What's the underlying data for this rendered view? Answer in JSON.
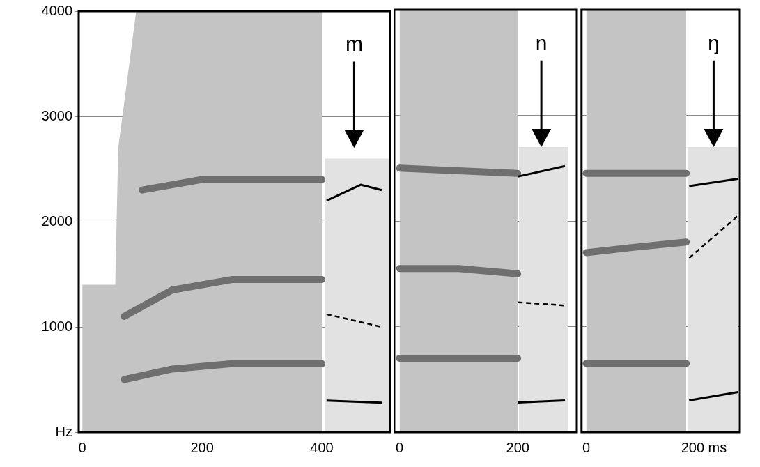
{
  "chart_data": [
    {
      "type": "line",
      "annotation": "m",
      "xlim": [
        -6,
        514
      ],
      "xticks": [
        0,
        200,
        400
      ],
      "ylim": [
        0,
        4000
      ],
      "yticks": [
        {
          "value": 0,
          "label": "Hz"
        },
        1000,
        2000,
        3000,
        4000
      ],
      "grid": true,
      "series": [
        {
          "type": "area",
          "color": "#c4c4c4",
          "x": [
            0,
            55,
            60,
            90,
            400
          ],
          "values": [
            1400,
            1400,
            2700,
            4000,
            4000
          ]
        },
        {
          "type": "area",
          "color": "#e2e2e2",
          "x": [
            405,
            545
          ],
          "values": [
            2600,
            2600
          ]
        },
        {
          "color": "#6f6f6f",
          "line_style": "thick",
          "x": [
            70,
            150,
            250,
            400
          ],
          "values": [
            500,
            600,
            650,
            650
          ]
        },
        {
          "color": "#6f6f6f",
          "line_style": "thick",
          "x": [
            70,
            150,
            250,
            350,
            400
          ],
          "values": [
            1100,
            1350,
            1450,
            1450,
            1450
          ]
        },
        {
          "color": "#6f6f6f",
          "line_style": "thick",
          "x": [
            100,
            200,
            300,
            400
          ],
          "values": [
            2300,
            2400,
            2400,
            2400
          ]
        },
        {
          "color": "#000000",
          "line_style": "solid",
          "x": [
            408,
            465,
            500
          ],
          "values": [
            2200,
            2350,
            2300
          ]
        },
        {
          "color": "#000000",
          "line_style": "dashed",
          "x": [
            408,
            500
          ],
          "values": [
            1120,
            1000
          ]
        },
        {
          "color": "#000000",
          "line_style": "solid",
          "x": [
            408,
            500
          ],
          "values": [
            300,
            280
          ]
        }
      ]
    },
    {
      "type": "line",
      "annotation": "n",
      "xlim": [
        -9,
        300
      ],
      "xticks": [
        0,
        200
      ],
      "ylim": [
        0,
        4000
      ],
      "yticks": [
        {
          "value": 0,
          "label": "Hz"
        },
        1000,
        2000,
        3000,
        4000
      ],
      "grid": true,
      "tick_labels": "x",
      "series": [
        {
          "type": "area",
          "color": "#c4c4c4",
          "x": [
            0,
            200
          ],
          "values": [
            4000,
            4000
          ]
        },
        {
          "type": "area",
          "color": "#e2e2e2",
          "x": [
            202,
            285
          ],
          "values": [
            2700,
            2700
          ]
        },
        {
          "color": "#6f6f6f",
          "line_style": "thick",
          "x": [
            0,
            200
          ],
          "values": [
            700,
            700
          ]
        },
        {
          "color": "#6f6f6f",
          "line_style": "thick",
          "x": [
            0,
            100,
            200
          ],
          "values": [
            1550,
            1550,
            1500
          ]
        },
        {
          "color": "#6f6f6f",
          "line_style": "thick",
          "x": [
            0,
            200
          ],
          "values": [
            2500,
            2450
          ]
        },
        {
          "color": "#000000",
          "line_style": "solid",
          "x": [
            200,
            280
          ],
          "values": [
            2420,
            2520
          ]
        },
        {
          "color": "#000000",
          "line_style": "dashed",
          "x": [
            200,
            280
          ],
          "values": [
            1230,
            1200
          ]
        },
        {
          "color": "#000000",
          "line_style": "solid",
          "x": [
            200,
            280
          ],
          "values": [
            280,
            300
          ]
        }
      ]
    },
    {
      "type": "line",
      "annotation": "ŋ",
      "xlim": [
        -8,
        261
      ],
      "xticks": [
        0,
        {
          "value": 200,
          "label": "200 ms"
        }
      ],
      "ylim": [
        0,
        4000
      ],
      "yticks": [
        {
          "value": 0,
          "label": "Hz"
        },
        1000,
        2000,
        3000,
        4000
      ],
      "grid": true,
      "tick_labels": "x",
      "series": [
        {
          "type": "area",
          "color": "#c4c4c4",
          "x": [
            0,
            170
          ],
          "values": [
            4000,
            4000
          ]
        },
        {
          "type": "area",
          "color": "#e2e2e2",
          "x": [
            172,
            258
          ],
          "values": [
            2700,
            2700
          ]
        },
        {
          "color": "#6f6f6f",
          "line_style": "thick",
          "x": [
            0,
            170
          ],
          "values": [
            650,
            650
          ]
        },
        {
          "color": "#6f6f6f",
          "line_style": "thick",
          "x": [
            0,
            80,
            170
          ],
          "values": [
            1700,
            1750,
            1800
          ]
        },
        {
          "color": "#6f6f6f",
          "line_style": "thick",
          "x": [
            0,
            170
          ],
          "values": [
            2450,
            2450
          ]
        },
        {
          "color": "#000000",
          "line_style": "solid",
          "x": [
            175,
            258
          ],
          "values": [
            2330,
            2400
          ]
        },
        {
          "color": "#000000",
          "line_style": "dashed",
          "x": [
            175,
            258
          ],
          "values": [
            1650,
            2050
          ]
        },
        {
          "color": "#000000",
          "line_style": "solid",
          "x": [
            175,
            258
          ],
          "values": [
            300,
            380
          ]
        }
      ]
    }
  ]
}
